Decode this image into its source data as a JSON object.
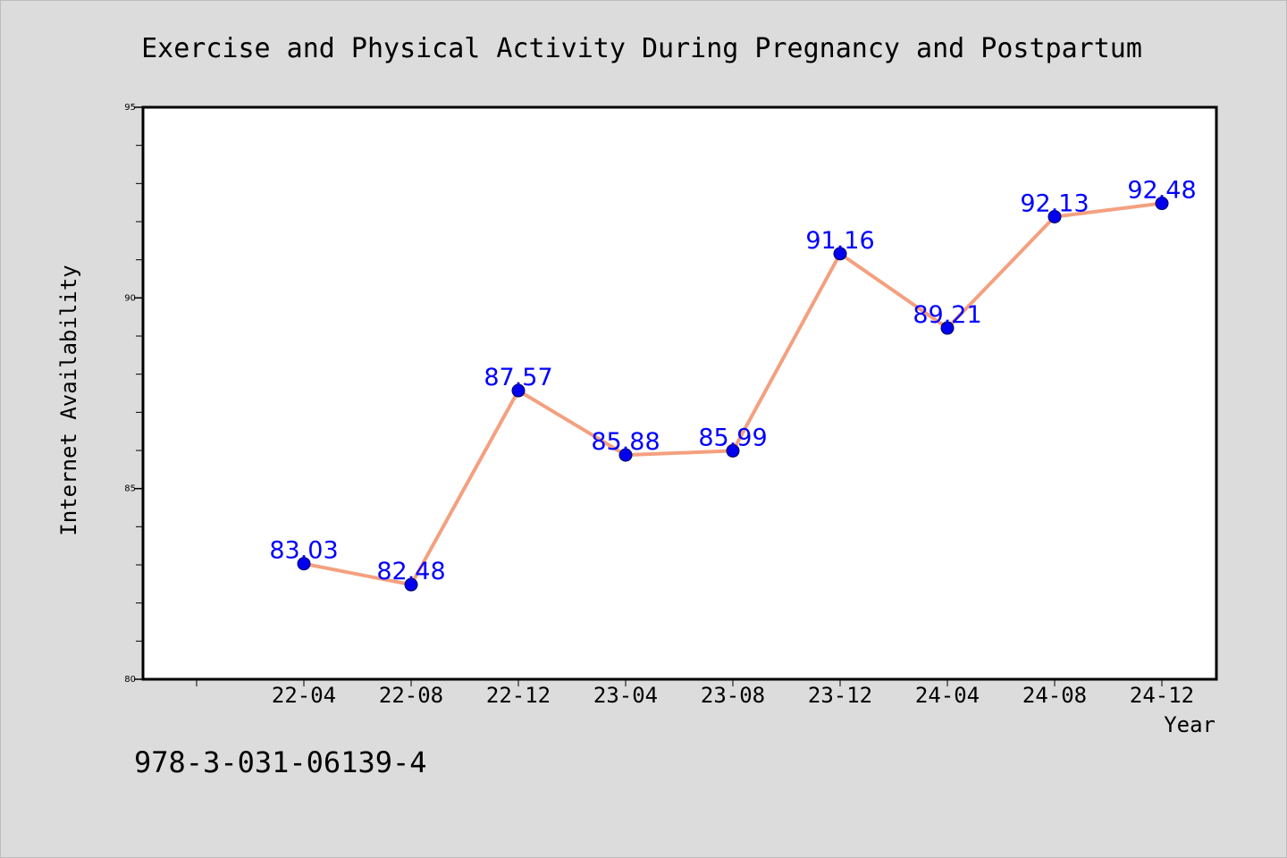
{
  "chart_data": {
    "type": "line",
    "title": "Exercise and Physical Activity During Pregnancy and Postpartum",
    "xlabel": "Year",
    "ylabel": "Internet Availability",
    "categories": [
      "22-04",
      "22-08",
      "22-12",
      "23-04",
      "23-08",
      "23-12",
      "24-04",
      "24-08",
      "24-12"
    ],
    "values": [
      83.03,
      82.48,
      87.57,
      85.88,
      85.99,
      91.16,
      89.21,
      92.13,
      92.48
    ],
    "data_labels": [
      "83.03",
      "82.48",
      "87.57",
      "85.88",
      "85.99",
      "91.16",
      "89.21",
      "92.13",
      "92.48"
    ],
    "ylim": [
      80,
      95
    ],
    "yticks": [
      80,
      85,
      90,
      95
    ],
    "grid": false,
    "legend": "none",
    "colors": {
      "line": "#f4a07f",
      "marker": "#0000ee",
      "label": "#0000ff",
      "background": "#dcdcdc",
      "plot_background": "#ffffff"
    }
  },
  "footnote": "978-3-031-06139-4"
}
